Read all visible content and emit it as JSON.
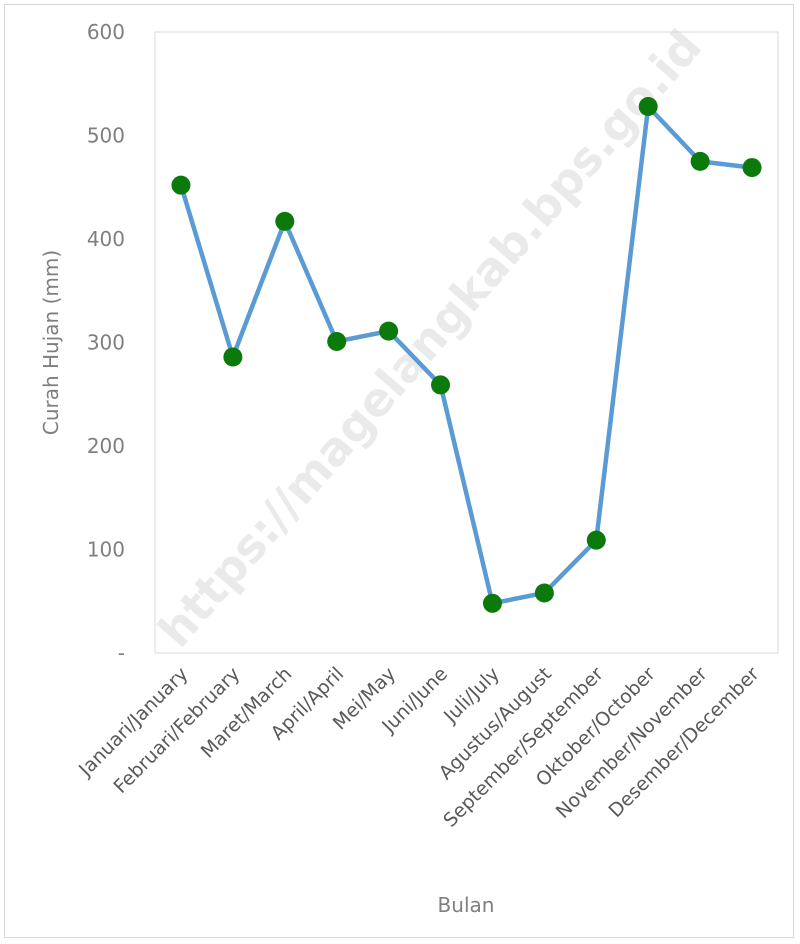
{
  "chart_data": {
    "type": "line",
    "categories": [
      "Januari/January",
      "Februari/February",
      "Maret/March",
      "April/April",
      "Mei/May",
      "Juni/June",
      "Juli/July",
      "Agustus/August",
      "September/September",
      "Oktober/October",
      "November/November",
      "Desember/December"
    ],
    "series": [
      {
        "values": [
          452,
          286,
          417,
          301,
          311,
          259,
          48,
          58,
          109,
          528,
          475,
          469
        ],
        "line_color": "#5b9bd5",
        "marker_color": "#0b7a0b"
      }
    ],
    "title": "",
    "xlabel": "Bulan",
    "ylabel": "Curah Hujan (mm)",
    "ylim": [
      0,
      600
    ],
    "yticks": [
      0,
      100,
      200,
      300,
      400,
      500,
      600
    ],
    "ytick_labels": [
      "-",
      "100",
      "200",
      "300",
      "400",
      "500",
      "600"
    ],
    "grid": false,
    "legend": "none",
    "watermark": "https://magelangkab.bps.go.id"
  }
}
